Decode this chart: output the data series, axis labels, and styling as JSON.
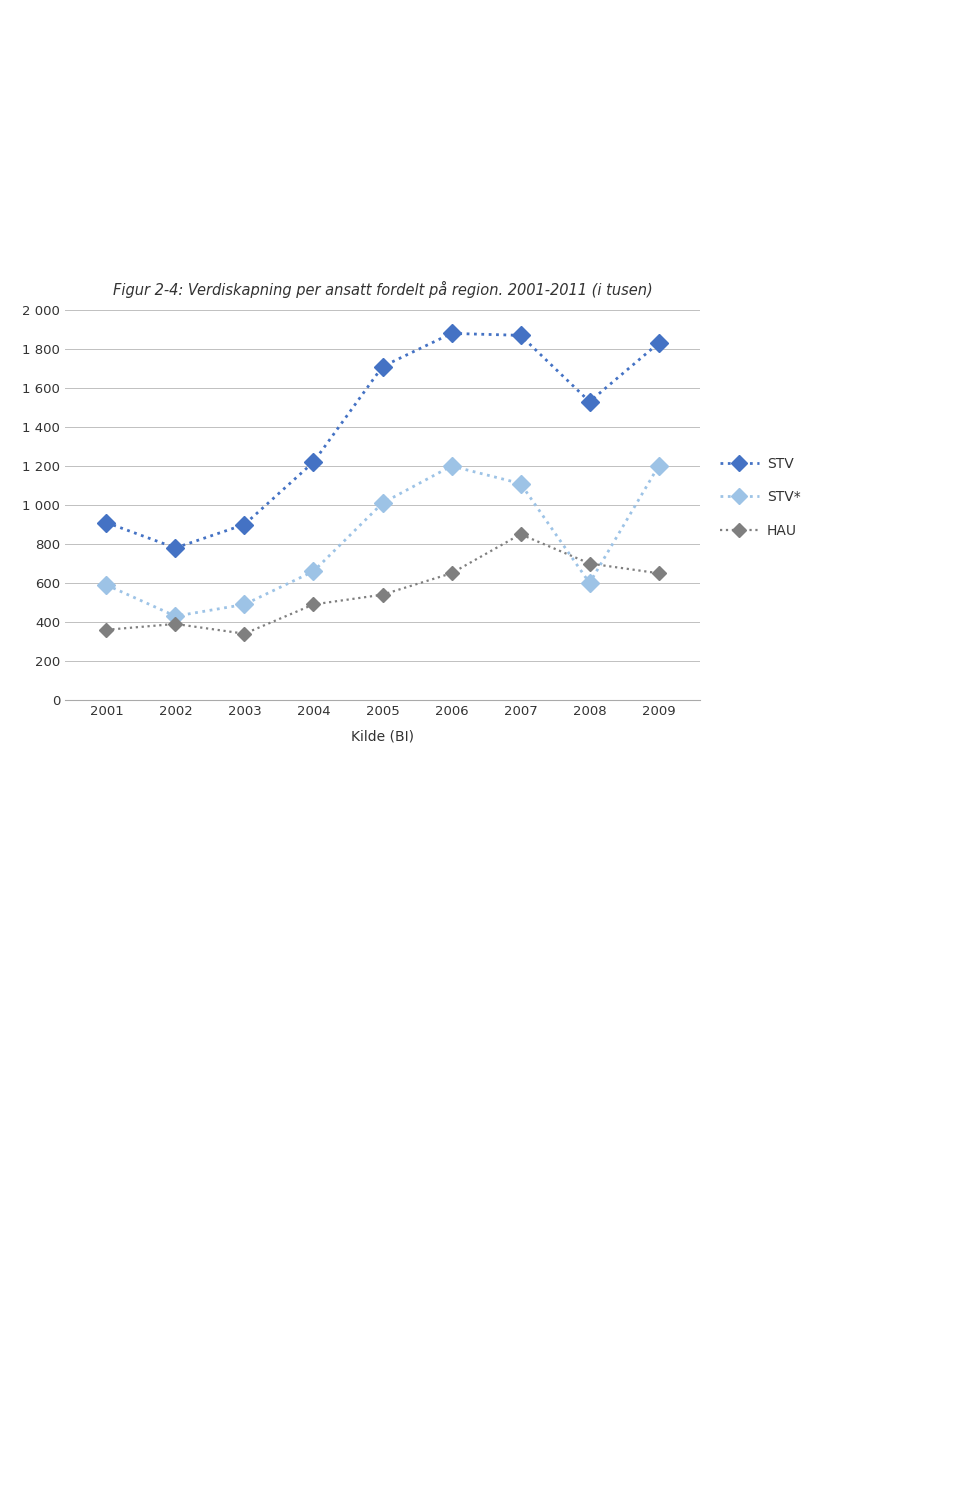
{
  "title": "Figur 2-4: Verdiskapning per ansatt fordelt på region. 2001-2011 (i tusen)",
  "xlabel": "Kilde (BI)",
  "years": [
    2001,
    2002,
    2003,
    2004,
    2005,
    2006,
    2007,
    2008,
    2009
  ],
  "STV": [
    910,
    780,
    900,
    1220,
    1710,
    1880,
    1870,
    1530,
    1830
  ],
  "STV_star": [
    590,
    430,
    490,
    660,
    1010,
    1200,
    1110,
    600,
    1200
  ],
  "HAU": [
    360,
    390,
    340,
    490,
    540,
    650,
    850,
    700,
    650
  ],
  "STV_color": "#4472C4",
  "STV_star_color": "#9DC3E6",
  "HAU_color": "#7F7F7F",
  "background_color": "#FFFFFF",
  "ylim": [
    0,
    2000
  ],
  "yticks": [
    0,
    200,
    400,
    600,
    800,
    1000,
    1200,
    1400,
    1600,
    1800,
    2000
  ],
  "ytick_labels": [
    "0",
    "200",
    "400",
    "600",
    "800",
    "1 000",
    "1 200",
    "1 400",
    "1 600",
    "1 800",
    "2 000"
  ],
  "grid_color": "#C0C0C0",
  "title_fontsize": 10.5,
  "axis_fontsize": 9.5,
  "legend_fontsize": 10
}
